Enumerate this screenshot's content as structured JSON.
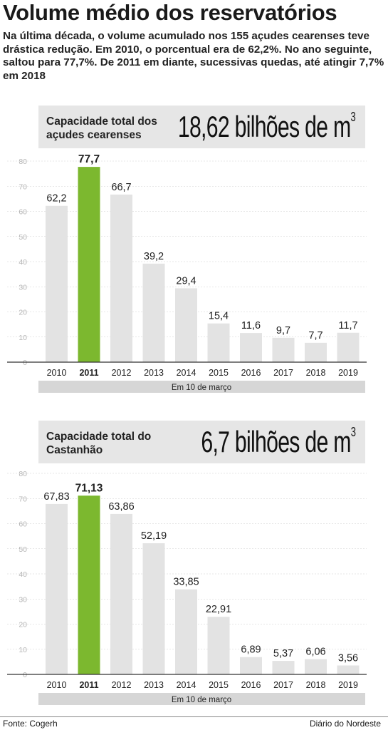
{
  "title": "Volume médio dos reservatórios",
  "subtitle": "Na última década, o volume acumulado nos 155 açudes cearenses teve drástica redução. Em 2010, o porcentual era de 62,2%. No ano seguinte, saltou para 77,7%. De 2011 em diante, sucessivas quedas, até atingir 7,7% em 2018",
  "colors": {
    "bar": "#e3e3e3",
    "highlight": "#7cb82f",
    "axis": "#333333",
    "grid": "#d0d0d0",
    "band": "#d6d6d6"
  },
  "footer": {
    "source": "Fonte:  Cogerh",
    "publisher": "Diário do Nordeste"
  },
  "chart_data": [
    {
      "type": "bar",
      "capacity_label": "Capacidade total dos açudes cearenses",
      "capacity_value": "18,62 bilhões de m",
      "capacity_unit_sup": "3",
      "categories": [
        "2010",
        "2011",
        "2012",
        "2013",
        "2014",
        "2015",
        "2016",
        "2017",
        "2018",
        "2019"
      ],
      "values": [
        62.2,
        77.7,
        66.7,
        39.2,
        29.4,
        15.4,
        11.6,
        9.7,
        7.7,
        11.7
      ],
      "value_labels": [
        "62,2",
        "77,7",
        "66,7",
        "39,2",
        "29,4",
        "15,4",
        "11,6",
        "9,7",
        "7,7",
        "11,7"
      ],
      "highlight": "2011",
      "ylim": [
        0,
        80
      ],
      "yticks": [
        "0",
        "10",
        "20",
        "30",
        "40",
        "50",
        "60",
        "70",
        "80"
      ],
      "xnote": "Em 10 de março",
      "grid": true
    },
    {
      "type": "bar",
      "capacity_label": "Capacidade total do Castanhão",
      "capacity_value": "6,7 bilhões de m",
      "capacity_unit_sup": "3",
      "categories": [
        "2010",
        "2011",
        "2012",
        "2013",
        "2014",
        "2015",
        "2016",
        "2017",
        "2018",
        "2019"
      ],
      "values": [
        67.83,
        71.13,
        63.86,
        52.19,
        33.85,
        22.91,
        6.89,
        5.37,
        6.06,
        3.56
      ],
      "value_labels": [
        "67,83",
        "71,13",
        "63,86",
        "52,19",
        "33,85",
        "22,91",
        "6,89",
        "5,37",
        "6,06",
        "3,56"
      ],
      "highlight": "2011",
      "ylim": [
        0,
        80
      ],
      "yticks": [
        "0",
        "10",
        "20",
        "30",
        "40",
        "50",
        "60",
        "70",
        "80"
      ],
      "xnote": "Em 10 de março",
      "grid": true
    }
  ]
}
